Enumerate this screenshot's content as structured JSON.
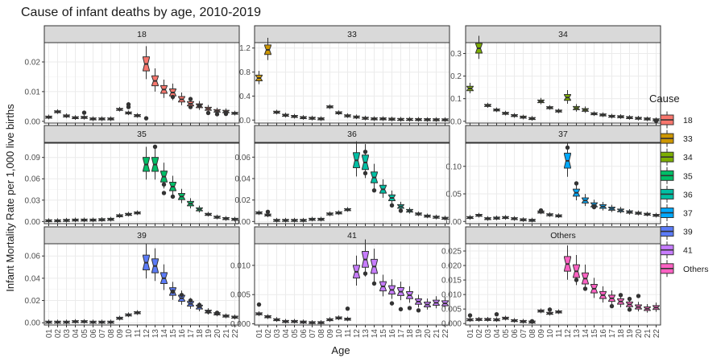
{
  "chart_data": {
    "type": "boxplot",
    "title": "Cause of infant deaths by age, 2010-2019",
    "xlabel": "Age",
    "ylabel": "Infant Mortality Rate per 1,000 live births",
    "categories": [
      "01",
      "02",
      "03",
      "04",
      "05",
      "06",
      "07",
      "08",
      "09",
      "10",
      "11",
      "12",
      "13",
      "14",
      "15",
      "16",
      "17",
      "18",
      "19",
      "20",
      "21",
      "22"
    ],
    "legend": {
      "title": "Cause",
      "placement": "right",
      "entries": [
        {
          "name": "18",
          "color": "#F8766D"
        },
        {
          "name": "33",
          "color": "#CD9600"
        },
        {
          "name": "34",
          "color": "#7CAE00"
        },
        {
          "name": "35",
          "color": "#00BE67"
        },
        {
          "name": "36",
          "color": "#00BFA4"
        },
        {
          "name": "37",
          "color": "#00A9FF"
        },
        {
          "name": "39",
          "color": "#5B7BF8"
        },
        {
          "name": "41",
          "color": "#C77CFF"
        },
        {
          "name": "Others",
          "color": "#FF61C3"
        }
      ]
    },
    "panels": [
      {
        "label": "18",
        "color": "#F8766D",
        "ylim": [
          -0.0006,
          0.0265
        ],
        "yticks": [
          0.0,
          0.01,
          0.02
        ],
        "ytick_labels": [
          "0.00",
          "0.01",
          "0.02"
        ],
        "medians": [
          0.0014,
          0.0032,
          0.0018,
          0.0012,
          0.0013,
          0.0008,
          0.0008,
          0.0008,
          0.004,
          0.0028,
          0.0019,
          0.0193,
          0.0136,
          0.0107,
          0.0097,
          0.0074,
          0.0059,
          0.0052,
          0.0042,
          0.0035,
          0.0033,
          0.0027
        ],
        "outliers": [
          [
            4,
            0.0029
          ],
          [
            9,
            0.0057
          ],
          [
            9,
            0.0048
          ],
          [
            11,
            0.001
          ],
          [
            14,
            0.0082
          ],
          [
            16,
            0.0048
          ],
          [
            16,
            0.0075
          ],
          [
            17,
            0.0053
          ],
          [
            18,
            0.0028
          ],
          [
            19,
            0.0024
          ],
          [
            20,
            0.0025
          ]
        ]
      },
      {
        "label": "33",
        "color": "#CD9600",
        "ylim": [
          -0.05,
          1.29
        ],
        "yticks": [
          0.0,
          0.4,
          0.8,
          1.2
        ],
        "ytick_labels": [
          "0.0",
          "0.4",
          "0.8",
          "1.2"
        ],
        "medians": [
          0.7,
          1.17,
          0.13,
          0.08,
          0.06,
          0.04,
          0.03,
          0.02,
          0.22,
          0.12,
          0.07,
          0.05,
          0.03,
          0.02,
          0.02,
          0.015,
          0.01,
          0.01,
          0.008,
          0.006,
          0.005,
          0.004
        ],
        "outliers": []
      },
      {
        "label": "34",
        "color": "#7CAE00",
        "ylim": [
          -0.008,
          0.348
        ],
        "yticks": [
          0.0,
          0.1,
          0.2,
          0.3
        ],
        "ytick_labels": [
          "0.0",
          "0.1",
          "0.2",
          "0.3"
        ],
        "medians": [
          0.145,
          0.323,
          0.07,
          0.05,
          0.035,
          0.025,
          0.018,
          0.012,
          0.088,
          0.06,
          0.045,
          0.105,
          0.058,
          0.05,
          0.033,
          0.028,
          0.022,
          0.02,
          0.016,
          0.013,
          0.01,
          0.006
        ],
        "outliers": [
          [
            21,
            0.002
          ]
        ]
      },
      {
        "label": "35",
        "color": "#00BE67",
        "ylim": [
          -0.003,
          0.11
        ],
        "yticks": [
          0.0,
          0.03,
          0.06,
          0.09
        ],
        "ytick_labels": [
          "0.00",
          "0.03",
          "0.06",
          "0.09"
        ],
        "medians": [
          0.001,
          0.001,
          0.0015,
          0.002,
          0.002,
          0.002,
          0.0025,
          0.003,
          0.008,
          0.01,
          0.012,
          0.08,
          0.08,
          0.063,
          0.049,
          0.035,
          0.025,
          0.017,
          0.01,
          0.006,
          0.004,
          0.003
        ],
        "outliers": [
          [
            12,
            0.105
          ],
          [
            13,
            0.052
          ],
          [
            14,
            0.035
          ],
          [
            13,
            0.04
          ]
        ]
      },
      {
        "label": "36",
        "color": "#00BFA4",
        "ylim": [
          -0.002,
          0.073
        ],
        "yticks": [
          0.0,
          0.02,
          0.04,
          0.06
        ],
        "ytick_labels": [
          "0.00",
          "0.02",
          "0.04",
          "0.06"
        ],
        "medians": [
          0.008,
          0.006,
          0.001,
          0.001,
          0.001,
          0.001,
          0.002,
          0.002,
          0.007,
          0.008,
          0.011,
          0.057,
          0.055,
          0.041,
          0.03,
          0.022,
          0.014,
          0.01,
          0.007,
          0.005,
          0.004,
          0.003
        ],
        "outliers": [
          [
            1,
            0.009
          ],
          [
            12,
            0.065
          ],
          [
            12,
            0.045
          ],
          [
            13,
            0.029
          ],
          [
            15,
            0.015
          ],
          [
            16,
            0.01
          ]
        ]
      },
      {
        "label": "37",
        "color": "#00A9FF",
        "ylim": [
          -0.004,
          0.142
        ],
        "yticks": [
          0.0,
          0.05,
          0.1
        ],
        "ytick_labels": [
          "0.00",
          "0.05",
          "0.10"
        ],
        "medians": [
          0.007,
          0.011,
          0.005,
          0.006,
          0.007,
          0.005,
          0.003,
          0.002,
          0.017,
          0.012,
          0.01,
          0.11,
          0.052,
          0.038,
          0.03,
          0.027,
          0.023,
          0.02,
          0.017,
          0.015,
          0.013,
          0.011
        ],
        "outliers": [
          [
            8,
            0.02
          ],
          [
            11,
            0.134
          ],
          [
            12,
            0.069
          ],
          [
            14,
            0.026
          ]
        ]
      },
      {
        "label": "39",
        "color": "#5B7BF8",
        "ylim": [
          -0.002,
          0.071
        ],
        "yticks": [
          0.0,
          0.02,
          0.04,
          0.06
        ],
        "ytick_labels": [
          "0.00",
          "0.02",
          "0.04",
          "0.06"
        ],
        "medians": [
          0.0005,
          0.0005,
          0.0005,
          0.001,
          0.001,
          0.0005,
          0.0005,
          0.0005,
          0.004,
          0.007,
          0.009,
          0.054,
          0.051,
          0.04,
          0.028,
          0.022,
          0.017,
          0.014,
          0.01,
          0.008,
          0.006,
          0.005
        ],
        "outliers": [
          [
            14,
            0.028
          ],
          [
            15,
            0.025
          ],
          [
            16,
            0.02
          ],
          [
            17,
            0.016
          ],
          [
            18,
            0.01
          ],
          [
            19,
            0.009
          ]
        ]
      },
      {
        "label": "41",
        "color": "#C77CFF",
        "ylim": [
          -0.0002,
          0.0137
        ],
        "yticks": [
          0.0,
          0.005,
          0.01
        ],
        "ytick_labels": [
          "0.000",
          "0.005",
          "0.010"
        ],
        "medians": [
          0.0017,
          0.0012,
          0.0007,
          0.0004,
          0.0004,
          0.0003,
          0.0002,
          0.0002,
          0.0007,
          0.001,
          0.0008,
          0.0089,
          0.011,
          0.0098,
          0.0064,
          0.0058,
          0.0055,
          0.0049,
          0.0038,
          0.0033,
          0.0036,
          0.0035
        ],
        "outliers": [
          [
            0,
            0.0033
          ],
          [
            10,
            0.0026
          ],
          [
            12,
            0.0086
          ],
          [
            13,
            0.0069
          ],
          [
            15,
            0.0035
          ],
          [
            16,
            0.0025
          ],
          [
            17,
            0.0027
          ],
          [
            18,
            0.0023
          ]
        ]
      },
      {
        "label": "Others",
        "color": "#FF61C3",
        "ylim": [
          -0.0005,
          0.0275
        ],
        "yticks": [
          0.0,
          0.005,
          0.01,
          0.015,
          0.02,
          0.025
        ],
        "ytick_labels": [
          "0.000",
          "0.005",
          "0.010",
          "0.015",
          "0.020",
          "0.025"
        ],
        "medians": [
          0.0013,
          0.0014,
          0.0014,
          0.0013,
          0.0018,
          0.001,
          0.0007,
          0.0005,
          0.0043,
          0.0035,
          0.004,
          0.0205,
          0.018,
          0.0155,
          0.012,
          0.0098,
          0.0087,
          0.0076,
          0.0066,
          0.0057,
          0.0051,
          0.0055
        ],
        "outliers": [
          [
            0,
            0.0028
          ],
          [
            3,
            0.0032
          ],
          [
            7,
            0.0008
          ],
          [
            9,
            0.0048
          ],
          [
            12,
            0.015
          ],
          [
            13,
            0.012
          ],
          [
            16,
            0.006
          ],
          [
            17,
            0.0098
          ],
          [
            18,
            0.0085
          ],
          [
            19,
            0.0095
          ],
          [
            18,
            0.0048
          ]
        ]
      }
    ]
  }
}
